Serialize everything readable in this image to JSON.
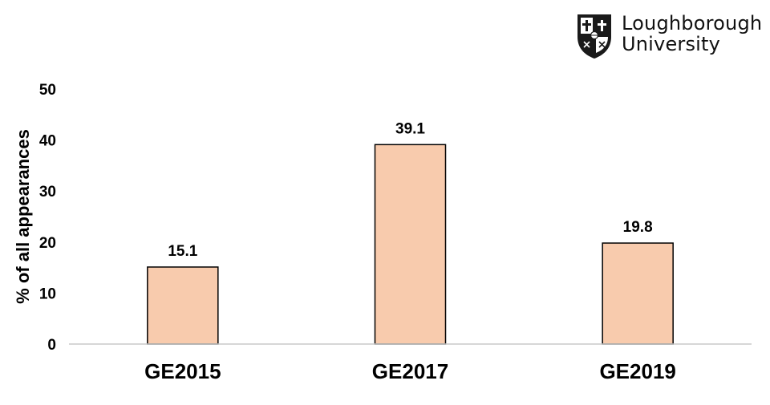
{
  "logo": {
    "name": "loughborough-university-crest",
    "line1": "Loughborough",
    "line2": "University"
  },
  "chart_data": {
    "type": "bar",
    "categories": [
      "GE2015",
      "GE2017",
      "GE2019"
    ],
    "values": [
      15.1,
      39.1,
      19.8
    ],
    "data_labels": [
      "15.1",
      "39.1",
      "19.8"
    ],
    "title": "",
    "xlabel": "",
    "ylabel": "% of all appearances",
    "ylim": [
      0,
      50
    ],
    "yticks": [
      0,
      10,
      20,
      30,
      40,
      50
    ],
    "bar_color": "#f8cbad",
    "bar_outline": "#000000",
    "grid": false,
    "legend": "none"
  }
}
